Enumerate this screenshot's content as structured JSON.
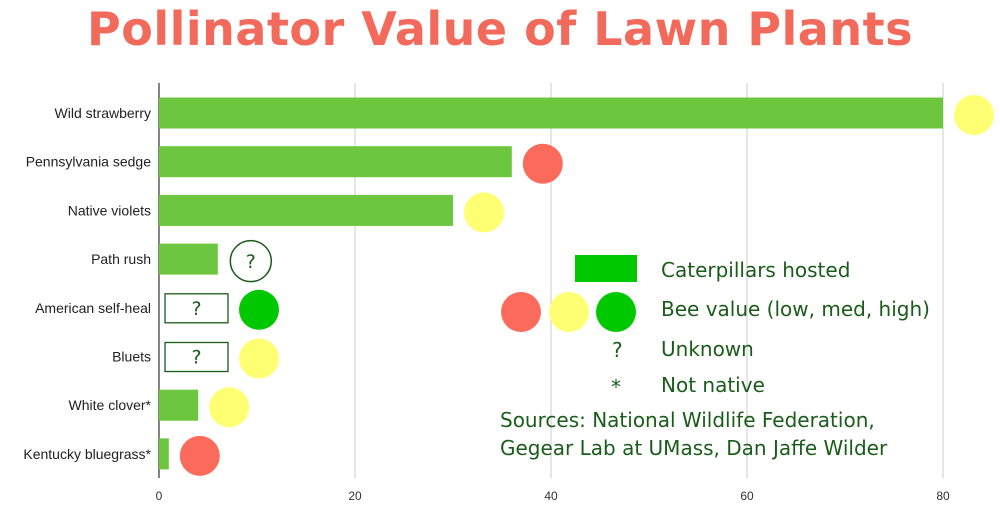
{
  "title": "Pollinator Value of Lawn Plants",
  "chart_data": {
    "type": "bar",
    "orientation": "horizontal",
    "title": "Pollinator Value of Lawn Plants",
    "categories": [
      "Wild strawberry",
      "Pennsylvania sedge",
      "Native violets",
      "Path rush",
      "American self-heal",
      "Bluets",
      "White clover*",
      "Kentucky bluegrass*"
    ],
    "series": [
      {
        "name": "Caterpillars hosted",
        "values": [
          80,
          36,
          30,
          6,
          null,
          null,
          4,
          1
        ]
      }
    ],
    "caterpillar_unknown": [
      false,
      false,
      false,
      false,
      true,
      true,
      false,
      false
    ],
    "bee_value": [
      "med",
      null,
      "med",
      "unknown",
      "high",
      "med",
      "med",
      "low"
    ],
    "xticks": [
      0,
      20,
      40,
      60,
      80
    ],
    "xlim": [
      0,
      85
    ],
    "grid": "vertical",
    "xlabel": "",
    "ylabel": ""
  },
  "unknown_symbol": "?",
  "legend": {
    "caterpillars": "Caterpillars hosted",
    "bee_value": "Bee value (low, med, high)",
    "unknown_symbol": "?",
    "unknown": "Unknown",
    "not_native_symbol": "*",
    "not_native": "Not native"
  },
  "sources": {
    "line1": "Sources: National Wildlife Federation,",
    "line2": "Gegear Lab at UMass, Dan Jaffe Wilder"
  },
  "colors": {
    "title": "#f26a5b",
    "bar": "#6cc73f",
    "legend_swatch": "#00c800",
    "bee_low": "#fb6b5b",
    "bee_med": "#ffff73",
    "bee_high": "#00c800",
    "text_green": "#1a5c1a",
    "grid": "#cccccc"
  }
}
